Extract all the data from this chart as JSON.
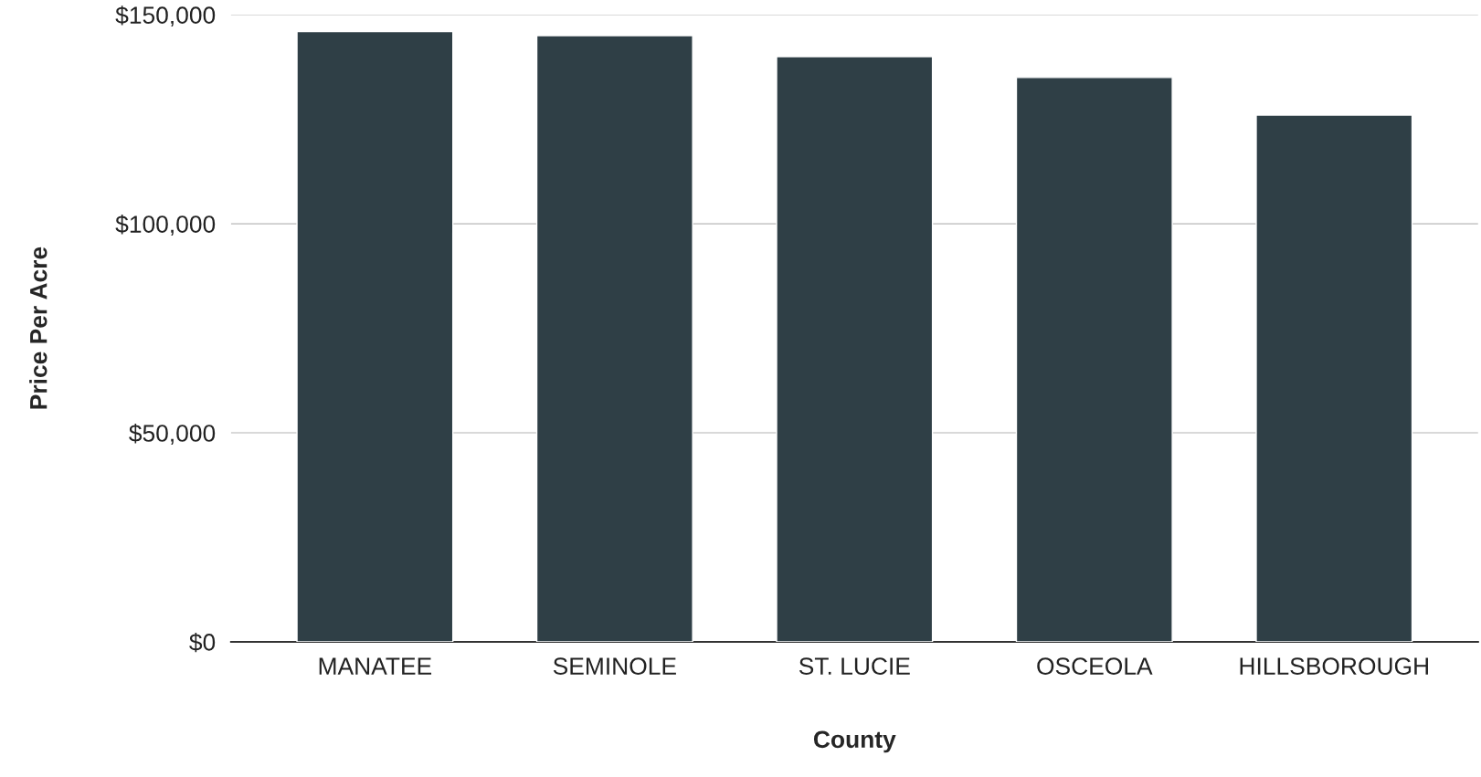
{
  "chart_data": {
    "type": "bar",
    "xlabel": "County",
    "ylabel": "Price Per Acre",
    "categories": [
      "MANATEE",
      "SEMINOLE",
      "ST. LUCIE",
      "OSCEOLA",
      "HILLSBOROUGH"
    ],
    "values": [
      146000,
      145000,
      140000,
      135000,
      126000
    ],
    "color": "#2f3f46",
    "ylim": [
      0,
      150000
    ],
    "yticks": [
      {
        "value": 0,
        "label": "$0"
      },
      {
        "value": 50000,
        "label": "$50,000"
      },
      {
        "value": 100000,
        "label": "$100,000"
      },
      {
        "value": 150000,
        "label": "$150,000"
      }
    ],
    "grid": "y",
    "legend": false
  }
}
